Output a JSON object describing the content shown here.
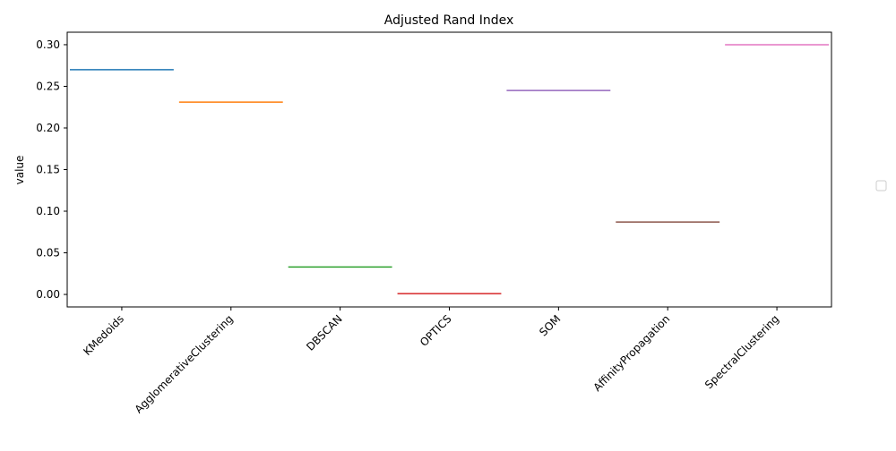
{
  "chart_data": {
    "type": "line",
    "title": "Adjusted Rand Index",
    "xlabel": "",
    "ylabel": "value",
    "categories": [
      "KMedoids",
      "AgglomerativeClustering",
      "DBSCAN",
      "OPTICS",
      "SOM",
      "AffinityPropagation",
      "SpectralClustering"
    ],
    "values": [
      0.27,
      0.231,
      0.033,
      0.001,
      0.245,
      0.087,
      0.3
    ],
    "colors": [
      "#1f77b4",
      "#ff7f0e",
      "#2ca02c",
      "#d62728",
      "#9467bd",
      "#8c564b",
      "#e377c2"
    ],
    "ylim": [
      -0.015,
      0.315
    ],
    "yticks": [
      0.0,
      0.05,
      0.1,
      0.15,
      0.2,
      0.25,
      0.3
    ],
    "ytick_labels": [
      "0.00",
      "0.05",
      "0.10",
      "0.15",
      "0.20",
      "0.25",
      "0.30"
    ],
    "grid": false,
    "legend": {
      "placement": "right",
      "entries": []
    }
  }
}
